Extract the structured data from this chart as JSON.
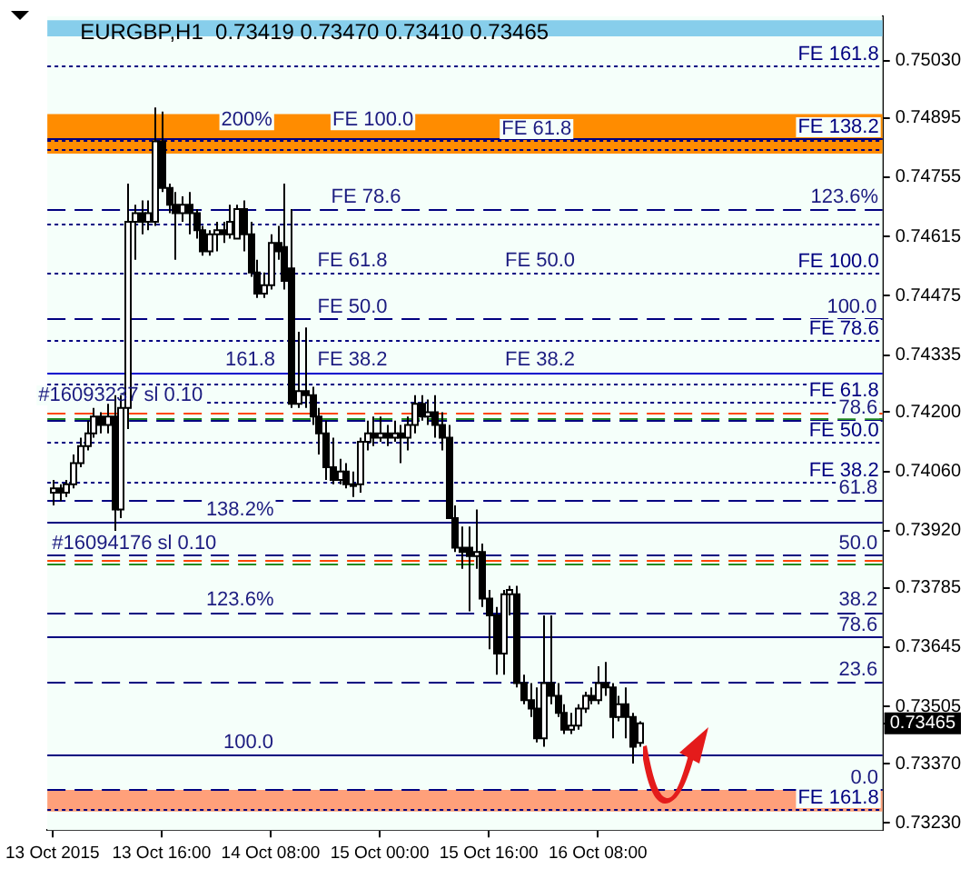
{
  "chart_data": {
    "type": "candlestick",
    "title": "EURGBP,H1  0.73419 0.73470 0.73410 0.73465",
    "x": [
      "2015-10-13T00:00",
      "2015-10-13T01:00",
      "2015-10-13T02:00",
      "2015-10-13T03:00",
      "2015-10-13T04:00",
      "2015-10-13T05:00",
      "2015-10-13T06:00",
      "2015-10-13T07:00",
      "2015-10-13T08:00",
      "2015-10-13T09:00",
      "2015-10-13T10:00",
      "2015-10-13T11:00",
      "2015-10-13T12:00",
      "2015-10-13T13:00",
      "2015-10-13T14:00",
      "2015-10-13T15:00",
      "2015-10-13T16:00",
      "2015-10-13T17:00",
      "2015-10-13T18:00",
      "2015-10-13T19:00",
      "2015-10-13T20:00",
      "2015-10-13T21:00",
      "2015-10-13T22:00",
      "2015-10-13T23:00",
      "2015-10-14T00:00",
      "2015-10-14T01:00",
      "2015-10-14T02:00",
      "2015-10-14T03:00",
      "2015-10-14T04:00",
      "2015-10-14T05:00",
      "2015-10-14T06:00",
      "2015-10-14T07:00",
      "2015-10-14T08:00",
      "2015-10-14T09:00",
      "2015-10-14T10:00",
      "2015-10-14T11:00",
      "2015-10-14T12:00",
      "2015-10-14T13:00",
      "2015-10-14T14:00",
      "2015-10-14T15:00",
      "2015-10-14T16:00",
      "2015-10-14T17:00",
      "2015-10-14T18:00",
      "2015-10-14T19:00",
      "2015-10-14T20:00",
      "2015-10-14T21:00",
      "2015-10-14T22:00",
      "2015-10-14T23:00",
      "2015-10-15T00:00",
      "2015-10-15T01:00",
      "2015-10-15T02:00",
      "2015-10-15T03:00",
      "2015-10-15T04:00",
      "2015-10-15T05:00",
      "2015-10-15T06:00",
      "2015-10-15T07:00",
      "2015-10-15T08:00",
      "2015-10-15T09:00",
      "2015-10-15T10:00",
      "2015-10-15T11:00",
      "2015-10-15T12:00",
      "2015-10-15T13:00",
      "2015-10-15T14:00",
      "2015-10-15T15:00",
      "2015-10-15T16:00",
      "2015-10-15T17:00",
      "2015-10-15T18:00",
      "2015-10-15T19:00",
      "2015-10-15T20:00",
      "2015-10-15T21:00",
      "2015-10-15T22:00",
      "2015-10-15T23:00",
      "2015-10-16T00:00",
      "2015-10-16T01:00",
      "2015-10-16T02:00",
      "2015-10-16T03:00",
      "2015-10-16T04:00",
      "2015-10-16T05:00",
      "2015-10-16T06:00",
      "2015-10-16T07:00",
      "2015-10-16T08:00",
      "2015-10-16T09:00",
      "2015-10-16T10:00",
      "2015-10-16T11:00",
      "2015-10-16T12:00",
      "2015-10-16T13:00",
      "2015-10-16T14:00"
    ],
    "ohlc": [
      [
        0.7401,
        0.7404,
        0.7398,
        0.7402
      ],
      [
        0.7402,
        0.7403,
        0.7399,
        0.7401
      ],
      [
        0.7401,
        0.7404,
        0.74,
        0.7403
      ],
      [
        0.7403,
        0.741,
        0.7402,
        0.7408
      ],
      [
        0.7408,
        0.7414,
        0.7407,
        0.7412
      ],
      [
        0.7412,
        0.7418,
        0.7411,
        0.7415
      ],
      [
        0.7415,
        0.7421,
        0.7414,
        0.7419
      ],
      [
        0.7419,
        0.742,
        0.7415,
        0.7417
      ],
      [
        0.7417,
        0.7422,
        0.7415,
        0.7419
      ],
      [
        0.7419,
        0.7424,
        0.7392,
        0.7397
      ],
      [
        0.7397,
        0.7424,
        0.7395,
        0.7421
      ],
      [
        0.7421,
        0.7474,
        0.7416,
        0.7465
      ],
      [
        0.7465,
        0.7469,
        0.7456,
        0.7467
      ],
      [
        0.7467,
        0.747,
        0.7462,
        0.7465
      ],
      [
        0.7465,
        0.747,
        0.7463,
        0.7467
      ],
      [
        0.7465,
        0.7492,
        0.7464,
        0.7484
      ],
      [
        0.7484,
        0.7491,
        0.7472,
        0.7473
      ],
      [
        0.7473,
        0.7474,
        0.7467,
        0.7469
      ],
      [
        0.7469,
        0.7472,
        0.7456,
        0.7467
      ],
      [
        0.7467,
        0.7471,
        0.7465,
        0.7469
      ],
      [
        0.7469,
        0.7472,
        0.7462,
        0.7467
      ],
      [
        0.7467,
        0.7468,
        0.7461,
        0.7463
      ],
      [
        0.7463,
        0.7464,
        0.7457,
        0.7458
      ],
      [
        0.7458,
        0.7463,
        0.7457,
        0.7462
      ],
      [
        0.7462,
        0.7465,
        0.7458,
        0.7463
      ],
      [
        0.7463,
        0.7465,
        0.746,
        0.7462
      ],
      [
        0.7462,
        0.7469,
        0.7461,
        0.7465
      ],
      [
        0.7461,
        0.7469,
        0.7461,
        0.7468
      ],
      [
        0.7468,
        0.747,
        0.7458,
        0.7462
      ],
      [
        0.7462,
        0.7465,
        0.7452,
        0.7453
      ],
      [
        0.7453,
        0.7456,
        0.7447,
        0.7448
      ],
      [
        0.7448,
        0.7453,
        0.7447,
        0.745
      ],
      [
        0.745,
        0.7462,
        0.7449,
        0.746
      ],
      [
        0.746,
        0.7464,
        0.7456,
        0.7458
      ],
      [
        0.7459,
        0.7474,
        0.7449,
        0.7451
      ],
      [
        0.7454,
        0.7468,
        0.7421,
        0.7422
      ],
      [
        0.7422,
        0.7439,
        0.7421,
        0.7425
      ],
      [
        0.7425,
        0.744,
        0.7421,
        0.7424
      ],
      [
        0.7424,
        0.7426,
        0.7417,
        0.7419
      ],
      [
        0.7419,
        0.7421,
        0.741,
        0.7415
      ],
      [
        0.7415,
        0.7418,
        0.7404,
        0.7407
      ],
      [
        0.7407,
        0.7414,
        0.7403,
        0.7404
      ],
      [
        0.7404,
        0.7409,
        0.7403,
        0.7406
      ],
      [
        0.7406,
        0.7408,
        0.7402,
        0.7403
      ],
      [
        0.7403,
        0.7406,
        0.74,
        0.7403
      ],
      [
        0.7403,
        0.7414,
        0.7401,
        0.7413
      ],
      [
        0.7413,
        0.7418,
        0.7411,
        0.7415
      ],
      [
        0.7415,
        0.7419,
        0.7412,
        0.7414
      ],
      [
        0.7414,
        0.7419,
        0.7413,
        0.7415
      ],
      [
        0.7415,
        0.7417,
        0.7412,
        0.7414
      ],
      [
        0.7414,
        0.7418,
        0.7413,
        0.7415
      ],
      [
        0.7415,
        0.7417,
        0.7408,
        0.7414
      ],
      [
        0.7414,
        0.7419,
        0.7411,
        0.7417
      ],
      [
        0.7417,
        0.7424,
        0.7415,
        0.7422
      ],
      [
        0.7422,
        0.7424,
        0.7418,
        0.7419
      ],
      [
        0.7419,
        0.7423,
        0.7417,
        0.742
      ],
      [
        0.742,
        0.7424,
        0.7414,
        0.7417
      ],
      [
        0.7417,
        0.742,
        0.7411,
        0.7414
      ],
      [
        0.7414,
        0.7417,
        0.7395,
        0.7395
      ],
      [
        0.7395,
        0.7398,
        0.7387,
        0.7388
      ],
      [
        0.7388,
        0.7393,
        0.7383,
        0.7387
      ],
      [
        0.7388,
        0.7393,
        0.7373,
        0.7386
      ],
      [
        0.7386,
        0.7397,
        0.7383,
        0.7387
      ],
      [
        0.7387,
        0.7389,
        0.7374,
        0.7376
      ],
      [
        0.7376,
        0.7378,
        0.7364,
        0.7372
      ],
      [
        0.7372,
        0.7374,
        0.7358,
        0.7363
      ],
      [
        0.7363,
        0.7378,
        0.7358,
        0.7377
      ],
      [
        0.7377,
        0.7379,
        0.7372,
        0.7378
      ],
      [
        0.7377,
        0.7379,
        0.7355,
        0.7356
      ],
      [
        0.7356,
        0.7358,
        0.7351,
        0.7352
      ],
      [
        0.7352,
        0.7356,
        0.7348,
        0.735
      ],
      [
        0.735,
        0.7355,
        0.7342,
        0.7343
      ],
      [
        0.7343,
        0.7372,
        0.7341,
        0.7356
      ],
      [
        0.7356,
        0.7372,
        0.7351,
        0.7353
      ],
      [
        0.7353,
        0.7356,
        0.7348,
        0.7349
      ],
      [
        0.7349,
        0.7351,
        0.7344,
        0.7345
      ],
      [
        0.7345,
        0.7349,
        0.7344,
        0.7346
      ],
      [
        0.7346,
        0.7351,
        0.7345,
        0.735
      ],
      [
        0.735,
        0.7354,
        0.7349,
        0.7353
      ],
      [
        0.7353,
        0.7355,
        0.7351,
        0.7352
      ],
      [
        0.7352,
        0.736,
        0.7351,
        0.7356
      ],
      [
        0.7356,
        0.7361,
        0.7353,
        0.7355
      ],
      [
        0.7355,
        0.7356,
        0.7343,
        0.7348
      ],
      [
        0.7348,
        0.7353,
        0.7347,
        0.7351
      ],
      [
        0.7351,
        0.7355,
        0.7343,
        0.7348
      ],
      [
        0.7348,
        0.7349,
        0.7337,
        0.7341
      ],
      [
        0.73419,
        0.7347,
        0.7341,
        0.73465
      ]
    ],
    "xlim": [
      "2015-10-12T23:15",
      "2015-10-18T01:45"
    ],
    "xticks": [
      {
        "value": "2015-10-13T00:00",
        "label": "13 Oct 2015"
      },
      {
        "value": "2015-10-13T16:00",
        "label": "13 Oct 16:00"
      },
      {
        "value": "2015-10-14T08:00",
        "label": "14 Oct 08:00"
      },
      {
        "value": "2015-10-15T00:00",
        "label": "15 Oct 00:00"
      },
      {
        "value": "2015-10-15T16:00",
        "label": "15 Oct 16:00"
      },
      {
        "value": "2015-10-16T08:00",
        "label": "16 Oct 08:00"
      }
    ],
    "ylim": [
      0.73213,
      0.75135
    ],
    "yticks": [
      {
        "value": 0.7503,
        "label": "0.75030"
      },
      {
        "value": 0.74895,
        "label": "0.74895"
      },
      {
        "value": 0.74755,
        "label": "0.74755"
      },
      {
        "value": 0.74615,
        "label": "0.74615"
      },
      {
        "value": 0.74475,
        "label": "0.74475"
      },
      {
        "value": 0.74335,
        "label": "0.74335"
      },
      {
        "value": 0.742,
        "label": "0.74200"
      },
      {
        "value": 0.7406,
        "label": "0.74060"
      },
      {
        "value": 0.7392,
        "label": "0.73920"
      },
      {
        "value": 0.73785,
        "label": "0.73785"
      },
      {
        "value": 0.73645,
        "label": "0.73645"
      },
      {
        "value": 0.73505,
        "label": "0.73505"
      },
      {
        "value": 0.73465,
        "label": "0.73465"
      },
      {
        "value": 0.7337,
        "label": "0.73370"
      },
      {
        "value": 0.7323,
        "label": "0.73230"
      }
    ],
    "bands": [
      {
        "axis": "y",
        "from": 0.75088,
        "to": 0.75126,
        "color": "#87ceeb"
      },
      {
        "axis": "y",
        "from": 0.74811,
        "to": 0.74904,
        "color": "#ff8c00"
      },
      {
        "axis": "y",
        "from": 0.73257,
        "to": 0.73308,
        "color": "#ffa07a"
      }
    ],
    "ref_lines": [
      {
        "axis": "y",
        "value": 0.75021,
        "label": "FE 161.8",
        "color": "#000080",
        "line_style": "dotted"
      },
      {
        "axis": "y",
        "value": 0.74849,
        "label": "FE 138.2",
        "color": "#000080",
        "line_style": "solid"
      },
      {
        "axis": "y",
        "value": 0.74841,
        "color": "#000080",
        "line_style": "dotted"
      },
      {
        "axis": "y",
        "value": 0.7482,
        "color": "#000080",
        "line_style": "dotted"
      },
      {
        "axis": "y",
        "value": 0.74681,
        "color": "#000080",
        "line_style": "dashed"
      },
      {
        "axis": "y",
        "value": 0.74647,
        "color": "#000080",
        "line_style": "dotted"
      },
      {
        "axis": "y",
        "value": 0.7453,
        "label": "FE 100.0",
        "color": "#000080",
        "line_style": "dotted"
      },
      {
        "axis": "y",
        "value": 0.74421,
        "color": "#000080",
        "line_style": "dashed"
      },
      {
        "axis": "y",
        "value": 0.74371,
        "label": "FE 78.6",
        "color": "#000080",
        "line_style": "dotted"
      },
      {
        "axis": "y",
        "value": 0.74295,
        "color": "#0000cd",
        "line_style": "solid"
      },
      {
        "axis": "y",
        "value": 0.74269,
        "color": "#000080",
        "line_style": "dotted"
      },
      {
        "axis": "y",
        "value": 0.74223,
        "label": "FE 61.8",
        "color": "#000080",
        "line_style": "dotted"
      },
      {
        "axis": "y",
        "value": 0.74198,
        "color": "#ff4500",
        "line_style": "dashed"
      },
      {
        "axis": "y",
        "value": 0.74185,
        "color": "#228b22",
        "line_style": "dashed"
      },
      {
        "axis": "y",
        "value": 0.74181,
        "color": "#000080",
        "line_style": "dashed"
      },
      {
        "axis": "y",
        "value": 0.74131,
        "label": "FE 50.0",
        "color": "#000080",
        "line_style": "dotted"
      },
      {
        "axis": "y",
        "value": 0.74034,
        "label": "FE 38.2",
        "color": "#000080",
        "line_style": "dotted"
      },
      {
        "axis": "y",
        "value": 0.73992,
        "color": "#000080",
        "line_style": "dashed"
      },
      {
        "axis": "y",
        "value": 0.73942,
        "color": "#000080",
        "line_style": "solid"
      },
      {
        "axis": "y",
        "value": 0.73862,
        "color": "#000080",
        "line_style": "dashed"
      },
      {
        "axis": "y",
        "value": 0.73849,
        "color": "#ff4500",
        "line_style": "dashed"
      },
      {
        "axis": "y",
        "value": 0.73841,
        "color": "#228b22",
        "line_style": "dashed"
      },
      {
        "axis": "y",
        "value": 0.73728,
        "color": "#000080",
        "line_style": "dashed"
      },
      {
        "axis": "y",
        "value": 0.73669,
        "color": "#000080",
        "line_style": "solid"
      },
      {
        "axis": "y",
        "value": 0.73564,
        "color": "#000080",
        "line_style": "dashed"
      },
      {
        "axis": "y",
        "value": 0.73392,
        "color": "#000080",
        "line_style": "solid"
      },
      {
        "axis": "y",
        "value": 0.73308,
        "color": "#000080",
        "line_style": "dashed"
      },
      {
        "axis": "y",
        "value": 0.73261,
        "label": "FE 161.8",
        "color": "#000080",
        "line_style": "dotted"
      }
    ],
    "annotations": [
      {
        "text": "200%",
        "x": "2015-10-14T04:30",
        "y": 0.74862
      },
      {
        "text": "FE 100.0",
        "x": "2015-10-14T23:00",
        "y": 0.74862
      },
      {
        "text": "FE 61.8",
        "x": "2015-10-15T23:00",
        "y": 0.74841
      },
      {
        "text": "FE 78.6",
        "x": "2015-10-14T22:00",
        "y": 0.74681
      },
      {
        "text": "FE 61.8",
        "x": "2015-10-14T20:00",
        "y": 0.7453
      },
      {
        "text": "FE 50.0",
        "x": "2015-10-15T23:30",
        "y": 0.7453
      },
      {
        "text": "FE 50.0",
        "x": "2015-10-14T20:00",
        "y": 0.74421
      },
      {
        "text": "FE 38.2",
        "x": "2015-10-14T20:00",
        "y": 0.74295
      },
      {
        "text": "FE 38.2",
        "x": "2015-10-15T23:30",
        "y": 0.74295
      },
      {
        "text": "161.8",
        "x": "2015-10-14T05:00",
        "y": 0.74295
      },
      {
        "text": "#16093237 sl 0.10",
        "x": "2015-10-13T10:00",
        "y": 0.74212
      },
      {
        "text": "138.2%",
        "x": "2015-10-14T03:30",
        "y": 0.73942
      },
      {
        "text": "#16094176 sl 0.10",
        "x": "2015-10-13T12:00",
        "y": 0.73862
      },
      {
        "text": "123.6%",
        "x": "2015-10-14T03:30",
        "y": 0.73728
      },
      {
        "text": "100.0",
        "x": "2015-10-14T04:45",
        "y": 0.73392
      },
      {
        "text": "123.6%",
        "x": "2015-10-17T20:10",
        "y": 0.74681
      },
      {
        "text": "100.0",
        "x": "2015-10-17T21:15",
        "y": 0.74421
      },
      {
        "text": "78.6",
        "x": "2015-10-17T22:10",
        "y": 0.74181
      },
      {
        "text": "61.8",
        "x": "2015-10-17T22:10",
        "y": 0.73992
      },
      {
        "text": "50.0",
        "x": "2015-10-17T22:10",
        "y": 0.73862
      },
      {
        "text": "38.2",
        "x": "2015-10-17T22:10",
        "y": 0.73728
      },
      {
        "text": "78.6",
        "x": "2015-10-17T22:10",
        "y": 0.73669
      },
      {
        "text": "23.6",
        "x": "2015-10-17T22:10",
        "y": 0.73564
      },
      {
        "text": "0.0",
        "x": "2015-10-17T23:05",
        "y": 0.73308
      }
    ],
    "grid": false,
    "legend": false
  }
}
